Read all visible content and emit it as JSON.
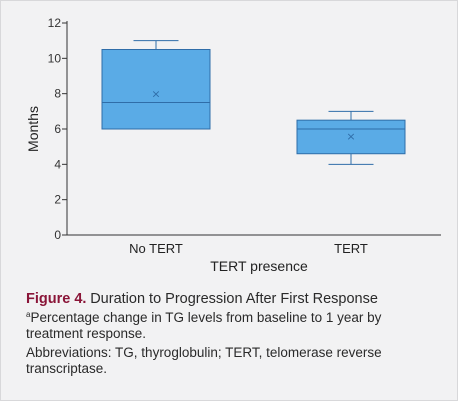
{
  "chart_data": {
    "type": "box",
    "xlabel": "TERT presence",
    "ylabel": "Months",
    "ylim": [
      0,
      12
    ],
    "yticks": [
      0,
      2,
      4,
      6,
      8,
      10,
      12
    ],
    "categories": [
      "No TERT",
      "TERT"
    ],
    "boxes": [
      {
        "category": "No TERT",
        "min": 6,
        "q1": 6,
        "median": 7.5,
        "q3": 10.5,
        "max": 11,
        "mean": 8
      },
      {
        "category": "TERT",
        "min": 4,
        "q1": 4.6,
        "median": 6,
        "q3": 6.5,
        "max": 7,
        "mean": 5.6
      }
    ],
    "colors": {
      "box_fill": "#5aabe6",
      "box_stroke": "#2f6da8",
      "axis": "#333333"
    },
    "grid": false
  },
  "caption": {
    "figure_label": "Figure 4.",
    "figure_title": "Duration to Progression After First Response",
    "footnote_mark": "a",
    "footnote_text": "Percentage change in TG levels from baseline to 1 year by treatment response.",
    "abbreviations": "Abbreviations: TG, thyroglobulin; TERT, telomerase reverse transcriptase."
  }
}
